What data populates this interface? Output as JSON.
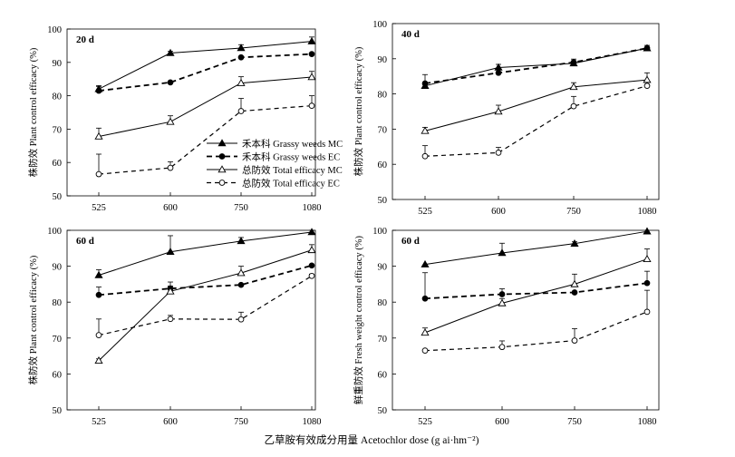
{
  "figure": {
    "xlabel": "乙草胺有效成分用量 Acetochlor dose (g ai·hm⁻²)"
  },
  "chart_data": [
    {
      "type": "line",
      "panel_label": "20 d",
      "ylabel": "株防效 Plant control efficacy (%)",
      "categories": [
        "525",
        "600",
        "750",
        "1080"
      ],
      "ylim": [
        50,
        100
      ],
      "yticks": [
        50,
        60,
        70,
        80,
        90,
        100
      ],
      "legend": "bottom-right",
      "series": [
        {
          "name": "禾本科 Grassy weeds MC",
          "values": [
            82.0,
            92.8,
            94.3,
            96.3
          ],
          "errors": [
            1.0,
            0.5,
            1.0,
            1.3
          ],
          "marker": "triangle-filled",
          "dash": "solid"
        },
        {
          "name": "禾本科 Grassy weeds EC",
          "values": [
            81.5,
            84.0,
            91.5,
            92.5
          ],
          "errors": [
            1.3,
            0,
            0,
            0
          ],
          "marker": "circle-filled",
          "dash": "dashed-bold"
        },
        {
          "name": "总防效 Total efficacy MC",
          "values": [
            67.8,
            72.2,
            83.8,
            85.6
          ],
          "errors": [
            2.5,
            1.8,
            1.9,
            1.7
          ],
          "marker": "triangle-open",
          "dash": "solid"
        },
        {
          "name": "总防效 Total efficacy EC",
          "values": [
            56.5,
            58.4,
            75.4,
            77.0
          ],
          "errors": [
            6.0,
            1.8,
            3.8,
            3.0
          ],
          "marker": "circle-open",
          "dash": "dashed"
        }
      ]
    },
    {
      "type": "line",
      "panel_label": "40 d",
      "ylabel": "株防效 Plant control efficacy (%)",
      "categories": [
        "525",
        "600",
        "750",
        "1080"
      ],
      "ylim": [
        50,
        100
      ],
      "yticks": [
        50,
        60,
        70,
        80,
        90,
        100
      ],
      "series": [
        {
          "name": "禾本科 Grassy weeds MC",
          "values": [
            82.3,
            87.5,
            88.7,
            93.0
          ],
          "errors": [
            1.0,
            0.9,
            1.2,
            0.8
          ],
          "marker": "triangle-filled",
          "dash": "solid"
        },
        {
          "name": "禾本科 Grassy weeds EC",
          "values": [
            83.0,
            86.0,
            89.0,
            93.0
          ],
          "errors": [
            2.5,
            0,
            0,
            0
          ],
          "marker": "circle-filled",
          "dash": "dashed-bold"
        },
        {
          "name": "总防效 Total efficacy MC",
          "values": [
            69.5,
            75.0,
            82.0,
            84.0
          ],
          "errors": [
            1.0,
            1.8,
            1.2,
            2.0
          ],
          "marker": "triangle-open",
          "dash": "solid"
        },
        {
          "name": "总防效 Total efficacy EC",
          "values": [
            62.3,
            63.3,
            76.5,
            82.3
          ],
          "errors": [
            3.0,
            1.5,
            2.8,
            1.0
          ],
          "marker": "circle-open",
          "dash": "dashed"
        }
      ]
    },
    {
      "type": "line",
      "panel_label": "60 d",
      "ylabel": "株防效 Plant control efficacy (%)",
      "categories": [
        "525",
        "600",
        "750",
        "1080"
      ],
      "ylim": [
        50,
        100
      ],
      "yticks": [
        50,
        60,
        70,
        80,
        90,
        100
      ],
      "series": [
        {
          "name": "禾本科 Grassy weeds MC",
          "values": [
            87.5,
            94.0,
            97.0,
            99.5
          ],
          "errors": [
            1.5,
            4.5,
            1.0,
            0.5
          ],
          "marker": "triangle-filled",
          "dash": "solid"
        },
        {
          "name": "禾本科 Grassy weeds EC",
          "values": [
            82.0,
            83.8,
            84.8,
            90.2
          ],
          "errors": [
            2.2,
            1.8,
            0,
            0
          ],
          "marker": "circle-filled",
          "dash": "dashed-bold"
        },
        {
          "name": "总防效 Total efficacy MC",
          "values": [
            63.7,
            83.0,
            88.1,
            94.5
          ],
          "errors": [
            0.5,
            1.5,
            1.9,
            1.5
          ],
          "marker": "triangle-open",
          "dash": "solid"
        },
        {
          "name": "总防效 Total efficacy EC",
          "values": [
            70.8,
            75.3,
            75.2,
            87.3
          ],
          "errors": [
            4.5,
            1.0,
            2.0,
            0.5
          ],
          "marker": "circle-open",
          "dash": "dashed"
        }
      ]
    },
    {
      "type": "line",
      "panel_label": "60 d",
      "ylabel": "鲜重防效 Fresh weight control efficacy (%)",
      "categories": [
        "525",
        "600",
        "750",
        "1080"
      ],
      "ylim": [
        50,
        100
      ],
      "yticks": [
        50,
        60,
        70,
        80,
        90,
        100
      ],
      "series": [
        {
          "name": "禾本科 Grassy weeds MC",
          "values": [
            90.5,
            93.7,
            96.3,
            99.7
          ],
          "errors": [
            0,
            2.7,
            0.5,
            0
          ],
          "marker": "triangle-filled",
          "dash": "solid"
        },
        {
          "name": "禾本科 Grassy weeds EC",
          "values": [
            81.0,
            82.2,
            82.7,
            85.3
          ],
          "errors": [
            7.2,
            1.5,
            0,
            3.3
          ],
          "marker": "circle-filled",
          "dash": "dashed-bold"
        },
        {
          "name": "总防效 Total efficacy MC",
          "values": [
            71.5,
            79.7,
            85.0,
            92.0
          ],
          "errors": [
            1.3,
            1.3,
            2.8,
            2.8
          ],
          "marker": "triangle-open",
          "dash": "solid"
        },
        {
          "name": "总防效 Total efficacy EC",
          "values": [
            66.5,
            67.5,
            69.3,
            77.3
          ],
          "errors": [
            0,
            1.7,
            3.3,
            6.0
          ],
          "marker": "circle-open",
          "dash": "dashed"
        }
      ]
    }
  ]
}
